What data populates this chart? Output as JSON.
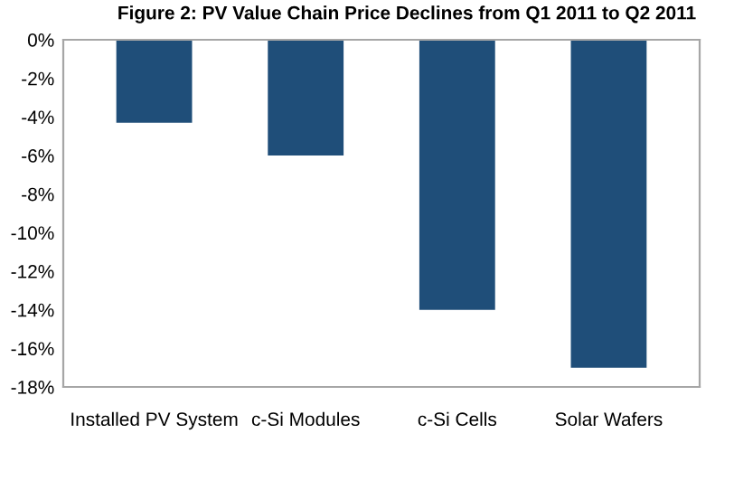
{
  "chart_data": {
    "type": "bar",
    "title": "Figure 2: PV Value Chain Price Declines from Q1 2011 to Q2 2011",
    "categories": [
      "Installed PV System",
      "c-Si Modules",
      "c-Si Cells",
      "Solar Wafers"
    ],
    "values": [
      -4.3,
      -6.0,
      -14.0,
      -17.0
    ],
    "color": "#1f4e79",
    "ylim": [
      -18,
      0
    ],
    "yticks": [
      {
        "value": 0,
        "label": "0%"
      },
      {
        "value": -2,
        "label": "-2%"
      },
      {
        "value": -4,
        "label": "-4%"
      },
      {
        "value": -6,
        "label": "-6%"
      },
      {
        "value": -8,
        "label": "-8%"
      },
      {
        "value": -10,
        "label": "-10%"
      },
      {
        "value": -12,
        "label": "-12%"
      },
      {
        "value": -14,
        "label": "-14%"
      },
      {
        "value": -16,
        "label": "-16%"
      },
      {
        "value": -18,
        "label": "-18%"
      }
    ],
    "grid": false,
    "legend": false
  }
}
